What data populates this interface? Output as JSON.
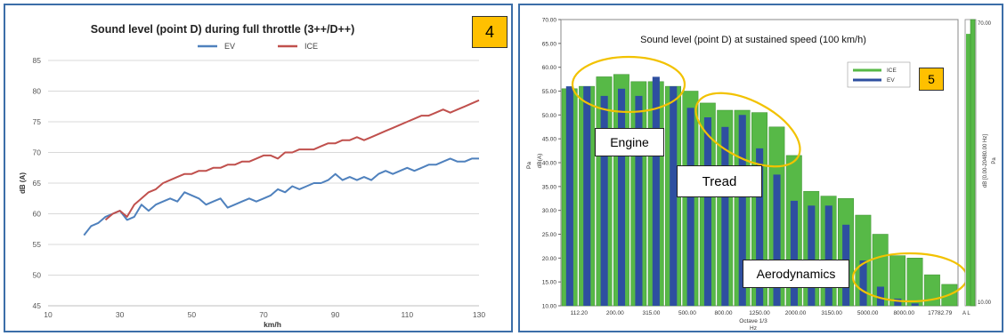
{
  "badges": {
    "left": "4",
    "right": "5"
  },
  "callouts": {
    "engine": "Engine",
    "tread": "Tread",
    "aero": "Aerodynamics"
  },
  "chart_data": [
    {
      "type": "line",
      "title": "Sound level (point D) during full throttle (3++/D++)",
      "xlabel": "km/h",
      "ylabel": "dB (A)",
      "xlim": [
        10,
        130
      ],
      "ylim": [
        45,
        85
      ],
      "xticks": [
        10,
        30,
        50,
        70,
        90,
        110,
        130
      ],
      "yticks": [
        45,
        50,
        55,
        60,
        65,
        70,
        75,
        80,
        85
      ],
      "grid": true,
      "legend": "top-center",
      "series": [
        {
          "name": "EV",
          "color": "#4f81bd",
          "points": [
            [
              20,
              56.5
            ],
            [
              22,
              58.0
            ],
            [
              24,
              58.5
            ],
            [
              26,
              59.5
            ],
            [
              28,
              60.0
            ],
            [
              30,
              60.5
            ],
            [
              32,
              59.0
            ],
            [
              34,
              59.5
            ],
            [
              36,
              61.5
            ],
            [
              38,
              60.5
            ],
            [
              40,
              61.5
            ],
            [
              42,
              62.0
            ],
            [
              44,
              62.5
            ],
            [
              46,
              62.0
            ],
            [
              48,
              63.5
            ],
            [
              50,
              63.0
            ],
            [
              52,
              62.5
            ],
            [
              54,
              61.5
            ],
            [
              56,
              62.0
            ],
            [
              58,
              62.5
            ],
            [
              60,
              61.0
            ],
            [
              62,
              61.5
            ],
            [
              64,
              62.0
            ],
            [
              66,
              62.5
            ],
            [
              68,
              62.0
            ],
            [
              70,
              62.5
            ],
            [
              72,
              63.0
            ],
            [
              74,
              64.0
            ],
            [
              76,
              63.5
            ],
            [
              78,
              64.5
            ],
            [
              80,
              64.0
            ],
            [
              82,
              64.5
            ],
            [
              84,
              65.0
            ],
            [
              86,
              65.0
            ],
            [
              88,
              65.5
            ],
            [
              90,
              66.5
            ],
            [
              92,
              65.5
            ],
            [
              94,
              66.0
            ],
            [
              96,
              65.5
            ],
            [
              98,
              66.0
            ],
            [
              100,
              65.5
            ],
            [
              102,
              66.5
            ],
            [
              104,
              67.0
            ],
            [
              106,
              66.5
            ],
            [
              108,
              67.0
            ],
            [
              110,
              67.5
            ],
            [
              112,
              67.0
            ],
            [
              114,
              67.5
            ],
            [
              116,
              68.0
            ],
            [
              118,
              68.0
            ],
            [
              120,
              68.5
            ],
            [
              122,
              69.0
            ],
            [
              124,
              68.5
            ],
            [
              126,
              68.5
            ],
            [
              128,
              69.0
            ],
            [
              130,
              69.0
            ]
          ]
        },
        {
          "name": "ICE",
          "color": "#c0504d",
          "points": [
            [
              26,
              59.0
            ],
            [
              28,
              60.0
            ],
            [
              30,
              60.5
            ],
            [
              32,
              59.5
            ],
            [
              34,
              61.5
            ],
            [
              36,
              62.5
            ],
            [
              38,
              63.5
            ],
            [
              40,
              64.0
            ],
            [
              42,
              65.0
            ],
            [
              44,
              65.5
            ],
            [
              46,
              66.0
            ],
            [
              48,
              66.5
            ],
            [
              50,
              66.5
            ],
            [
              52,
              67.0
            ],
            [
              54,
              67.0
            ],
            [
              56,
              67.5
            ],
            [
              58,
              67.5
            ],
            [
              60,
              68.0
            ],
            [
              62,
              68.0
            ],
            [
              64,
              68.5
            ],
            [
              66,
              68.5
            ],
            [
              68,
              69.0
            ],
            [
              70,
              69.5
            ],
            [
              72,
              69.5
            ],
            [
              74,
              69.0
            ],
            [
              76,
              70.0
            ],
            [
              78,
              70.0
            ],
            [
              80,
              70.5
            ],
            [
              82,
              70.5
            ],
            [
              84,
              70.5
            ],
            [
              86,
              71.0
            ],
            [
              88,
              71.5
            ],
            [
              90,
              71.5
            ],
            [
              92,
              72.0
            ],
            [
              94,
              72.0
            ],
            [
              96,
              72.5
            ],
            [
              98,
              72.0
            ],
            [
              100,
              72.5
            ],
            [
              102,
              73.0
            ],
            [
              104,
              73.5
            ],
            [
              106,
              74.0
            ],
            [
              108,
              74.5
            ],
            [
              110,
              75.0
            ],
            [
              112,
              75.5
            ],
            [
              114,
              76.0
            ],
            [
              116,
              76.0
            ],
            [
              118,
              76.5
            ],
            [
              120,
              77.0
            ],
            [
              122,
              76.5
            ],
            [
              124,
              77.0
            ],
            [
              126,
              77.5
            ],
            [
              128,
              78.0
            ],
            [
              130,
              78.5
            ]
          ]
        }
      ]
    },
    {
      "type": "bar",
      "title": "Sound level (point D) at sustained speed (100 km/h)",
      "xlabel": "Octave 1/3",
      "xunit": "Hz",
      "ylabel": "dB(A)",
      "yunit": "Pa",
      "y2label": "dB [0.00-20480.00 Hz]",
      "y2unit": "Pa",
      "ylim": [
        10,
        70
      ],
      "yticks": [
        "10.00",
        "15.00",
        "20.00",
        "25.00",
        "30.00",
        "35.00",
        "40.00",
        "45.00",
        "50.00",
        "55.00",
        "60.00",
        "65.00",
        "70.00"
      ],
      "xtick_labels": [
        "112.20",
        "200.00",
        "315.00",
        "500.00",
        "800.00",
        "1250.00",
        "2000.00",
        "3150.00",
        "5000.00",
        "8000.00",
        "17782.79"
      ],
      "right_axis_labels": {
        "top": "70.00",
        "bottom": "10.00",
        "al": "A L"
      },
      "legend": "top-right",
      "series": [
        {
          "name": "ICE",
          "color": "#57b947",
          "values": [
            55.5,
            56,
            58,
            58.5,
            57,
            57,
            56,
            55,
            52.5,
            51,
            51,
            50.5,
            47.5,
            41.5,
            34,
            33,
            32.5,
            29,
            25,
            20.5,
            20,
            16.5,
            14.5
          ]
        },
        {
          "name": "EV",
          "color": "#2e4fa0",
          "values": [
            56,
            56,
            54,
            55.5,
            54,
            58,
            56,
            51.5,
            49.5,
            47.5,
            50,
            43,
            37.5,
            32,
            31,
            31,
            27,
            19.5,
            14,
            11.5,
            10.5,
            10,
            10
          ]
        }
      ],
      "overall": {
        "ICE": 67,
        "EV": 70
      }
    }
  ]
}
